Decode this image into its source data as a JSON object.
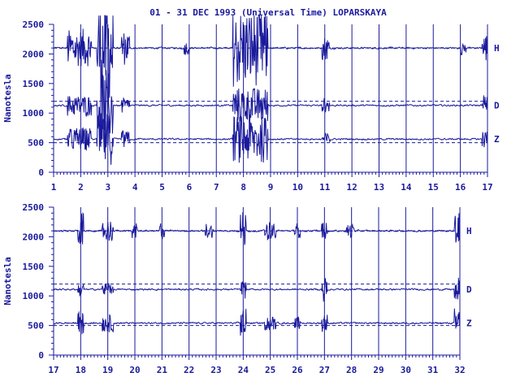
{
  "chart_data": {
    "type": "line",
    "title": "01 - 31 DEC 1993 (Universal Time) LOPARSKAYA",
    "ylabel": "Nanotesla",
    "colors": {
      "trace": "#1a1a9c",
      "axis": "#1a1a9c",
      "reference": "#1a1a9c"
    },
    "panels": [
      {
        "xlim": [
          1,
          17
        ],
        "ylim": [
          0,
          2500
        ],
        "x_ticks": [
          "1",
          "2",
          "3",
          "4",
          "5",
          "6",
          "7",
          "8",
          "9",
          "10",
          "11",
          "12",
          "13",
          "14",
          "15",
          "16",
          "17"
        ],
        "y_ticks": [
          "0",
          "500",
          "1000",
          "1500",
          "2000",
          "2500"
        ],
        "reference_lines": [
          2100,
          1200,
          500
        ],
        "series": [
          {
            "name": "H",
            "baseline": 2100,
            "noise": 25,
            "disturbances": [
              [
                1.5,
                2.4,
                320
              ],
              [
                2.6,
                3.2,
                900
              ],
              [
                3.5,
                3.8,
                300
              ],
              [
                5.8,
                6.0,
                120
              ],
              [
                7.6,
                8.9,
                650
              ],
              [
                10.9,
                11.2,
                200
              ],
              [
                16.0,
                16.2,
                120
              ],
              [
                16.8,
                17.0,
                250
              ]
            ]
          },
          {
            "name": "D",
            "baseline": 1130,
            "noise": 25,
            "disturbances": [
              [
                1.5,
                2.4,
                180
              ],
              [
                2.6,
                3.2,
                600
              ],
              [
                3.5,
                3.8,
                140
              ],
              [
                7.6,
                8.9,
                300
              ],
              [
                10.9,
                11.2,
                120
              ],
              [
                16.8,
                17.0,
                180
              ]
            ]
          },
          {
            "name": "Z",
            "baseline": 560,
            "noise": 25,
            "disturbances": [
              [
                1.5,
                2.4,
                200
              ],
              [
                2.6,
                3.2,
                450
              ],
              [
                3.5,
                3.8,
                150
              ],
              [
                7.6,
                8.9,
                400
              ],
              [
                10.9,
                11.2,
                100
              ],
              [
                16.8,
                17.0,
                150
              ]
            ]
          }
        ]
      },
      {
        "xlim": [
          17,
          32
        ],
        "ylim": [
          0,
          2500
        ],
        "x_ticks": [
          "17",
          "18",
          "19",
          "20",
          "21",
          "22",
          "23",
          "24",
          "25",
          "26",
          "27",
          "28",
          "29",
          "30",
          "31",
          "32"
        ],
        "y_ticks": [
          "0",
          "500",
          "1000",
          "1500",
          "2000",
          "2500"
        ],
        "reference_lines": [
          2100,
          1200,
          500
        ],
        "series": [
          {
            "name": "H",
            "baseline": 2100,
            "noise": 25,
            "disturbances": [
              [
                17.9,
                18.1,
                300
              ],
              [
                18.8,
                19.2,
                180
              ],
              [
                19.9,
                20.1,
                120
              ],
              [
                20.9,
                21.1,
                150
              ],
              [
                22.6,
                22.9,
                120
              ],
              [
                23.9,
                24.1,
                350
              ],
              [
                24.8,
                25.2,
                150
              ],
              [
                25.9,
                26.1,
                120
              ],
              [
                26.9,
                27.1,
                150
              ],
              [
                27.8,
                28.1,
                120
              ],
              [
                31.8,
                32.0,
                350
              ]
            ]
          },
          {
            "name": "D",
            "baseline": 1110,
            "noise": 25,
            "disturbances": [
              [
                17.9,
                18.1,
                120
              ],
              [
                18.8,
                19.2,
                100
              ],
              [
                23.9,
                24.1,
                150
              ],
              [
                26.9,
                27.1,
                220
              ],
              [
                31.8,
                32.0,
                200
              ]
            ]
          },
          {
            "name": "Z",
            "baseline": 540,
            "noise": 25,
            "disturbances": [
              [
                17.9,
                18.1,
                200
              ],
              [
                18.8,
                19.2,
                150
              ],
              [
                23.9,
                24.1,
                250
              ],
              [
                24.8,
                25.2,
                120
              ],
              [
                25.9,
                26.1,
                120
              ],
              [
                26.9,
                27.1,
                150
              ],
              [
                31.8,
                32.0,
                250
              ]
            ]
          }
        ]
      }
    ]
  }
}
